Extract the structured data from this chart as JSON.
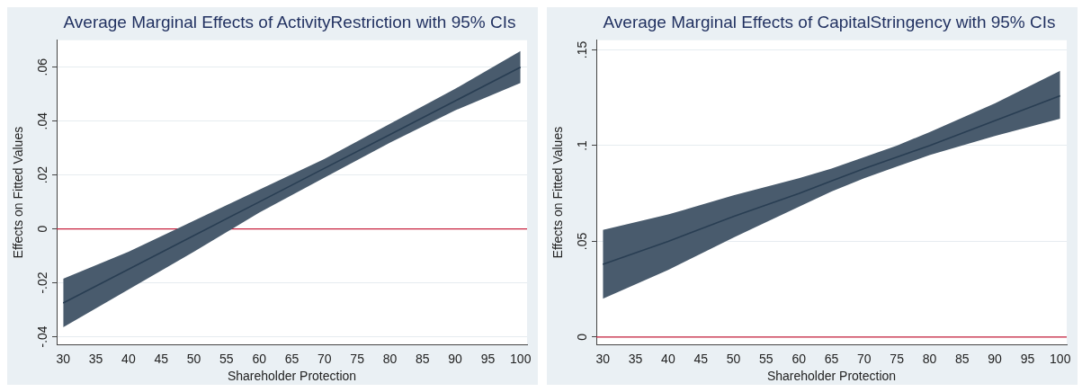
{
  "chart_data": [
    {
      "type": "line",
      "title": "Average Marginal Effects of ActivityRestriction with 95% CIs",
      "xlabel": "Shareholder Protection",
      "ylabel": "Effects on Fitted Values",
      "x": [
        30,
        40,
        50,
        60,
        70,
        80,
        90,
        100
      ],
      "series": [
        {
          "color": "#293e53",
          "values": [
            -0.0275,
            -0.015,
            -0.0025,
            0.01,
            0.0225,
            0.035,
            0.0475,
            0.06
          ],
          "lower": [
            -0.0365,
            -0.0225,
            -0.0085,
            0.006,
            0.019,
            0.032,
            0.044,
            0.0542
          ],
          "upper": [
            -0.0185,
            -0.0085,
            0.003,
            0.0145,
            0.026,
            0.039,
            0.052,
            0.066
          ]
        }
      ],
      "xlim": [
        29,
        101
      ],
      "xticks": [
        30,
        35,
        40,
        45,
        50,
        55,
        60,
        65,
        70,
        75,
        80,
        85,
        90,
        95,
        100
      ],
      "ylim": [
        -0.043,
        0.07
      ],
      "yticks": [
        {
          "value": -0.04,
          "label": "-.04"
        },
        {
          "value": -0.02,
          "label": "-.02"
        },
        0,
        {
          "value": 0.02,
          "label": ".02"
        },
        {
          "value": 0.04,
          "label": ".04"
        },
        {
          "value": 0.06,
          "label": ".06"
        }
      ],
      "ref_lines": [
        {
          "axis": "y",
          "value": 0,
          "color": "#c8233f"
        }
      ],
      "grid": "y",
      "legend": false,
      "marker": "none",
      "line_style": "solid"
    },
    {
      "type": "line",
      "title": "Average Marginal Effects of CapitalStringency with 95% CIs",
      "xlabel": "Shareholder Protection",
      "ylabel": "Effects on Fitted Values",
      "x": [
        30,
        40,
        50,
        60,
        65,
        70,
        75,
        80,
        90,
        100
      ],
      "series": [
        {
          "color": "#293e53",
          "values": [
            0.038,
            0.05,
            0.063,
            0.075,
            0.0815,
            0.088,
            0.094,
            0.1,
            0.113,
            0.126
          ],
          "lower": [
            0.02,
            0.035,
            0.052,
            0.068,
            0.076,
            0.083,
            0.089,
            0.095,
            0.105,
            0.114
          ],
          "upper": [
            0.056,
            0.064,
            0.074,
            0.083,
            0.088,
            0.094,
            0.1,
            0.107,
            0.122,
            0.139
          ]
        }
      ],
      "xlim": [
        29,
        101
      ],
      "xticks": [
        30,
        35,
        40,
        45,
        50,
        55,
        60,
        65,
        70,
        75,
        80,
        85,
        90,
        95,
        100
      ],
      "ylim": [
        -0.004,
        0.155
      ],
      "yticks": [
        0,
        {
          "value": 0.05,
          "label": ".05"
        },
        {
          "value": 0.1,
          "label": ".1"
        },
        {
          "value": 0.15,
          "label": ".15"
        }
      ],
      "ref_lines": [
        {
          "axis": "y",
          "value": 0,
          "color": "#c8233f"
        }
      ],
      "grid": "y",
      "legend": false,
      "marker": "none",
      "line_style": "solid"
    }
  ]
}
